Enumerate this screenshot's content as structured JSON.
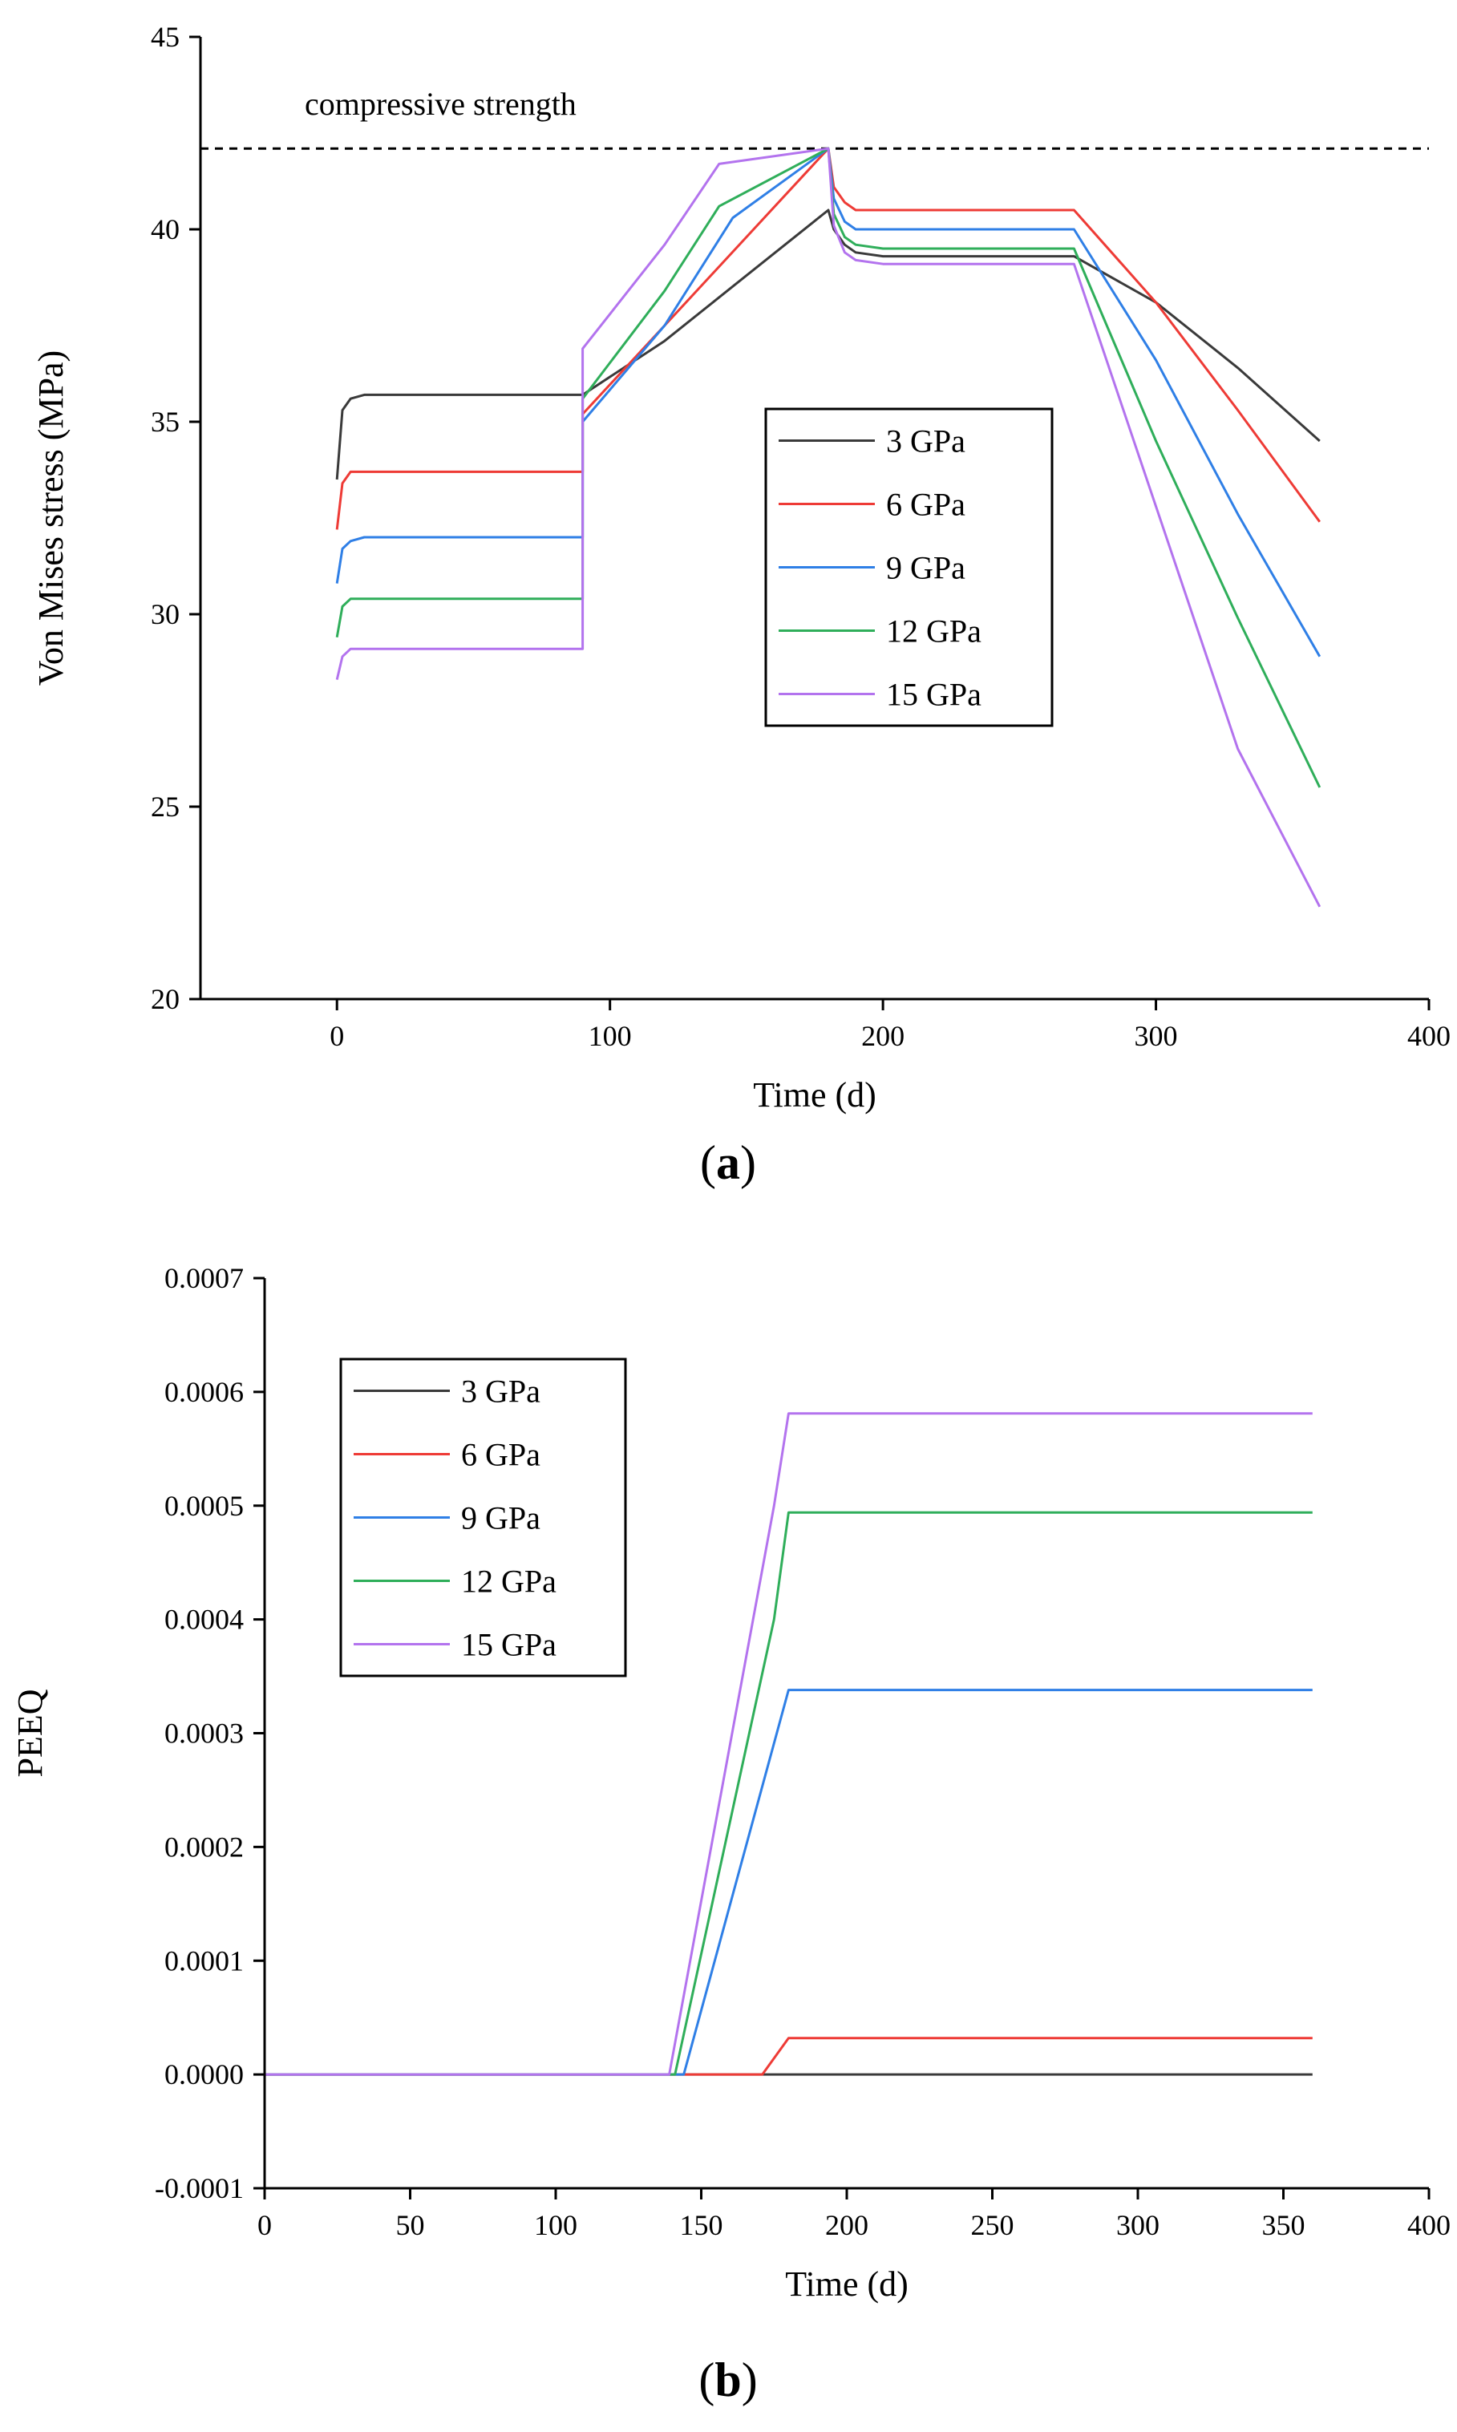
{
  "colors": {
    "3 GPa": "#3a3a3a",
    "6 GPa": "#ee3b36",
    "9 GPa": "#2f7fe6",
    "12 GPa": "#2fae5a",
    "15 GPa": "#b373ee",
    "reference": "#000000"
  },
  "chart_data": [
    {
      "type": "line",
      "panel_label": "a",
      "xlabel": "Time (d)",
      "ylabel": "Von Mises stress (MPa)",
      "xlim": [
        -50,
        400
      ],
      "ylim": [
        20,
        45
      ],
      "xticks": [
        0,
        100,
        200,
        300,
        400
      ],
      "yticks": [
        20,
        25,
        30,
        35,
        40,
        45
      ],
      "xtick_labels": [
        "0",
        "100",
        "200",
        "300",
        "400"
      ],
      "ytick_labels": [
        "20",
        "25",
        "30",
        "35",
        "40",
        "45"
      ],
      "legend_position": "center-right",
      "reference_line": {
        "label": "compressive strength",
        "y": 42.1
      },
      "series": [
        {
          "name": "3 GPa",
          "x": [
            0,
            2,
            5,
            10,
            90,
            90,
            120,
            150,
            180,
            182,
            186,
            190,
            200,
            270,
            300,
            330,
            360
          ],
          "y": [
            33.5,
            35.3,
            35.6,
            35.7,
            35.7,
            35.7,
            37.1,
            38.8,
            40.5,
            40.0,
            39.6,
            39.4,
            39.3,
            39.3,
            38.1,
            36.4,
            34.5
          ]
        },
        {
          "name": "6 GPa",
          "x": [
            0,
            2,
            5,
            10,
            90,
            90,
            120,
            150,
            180,
            182,
            186,
            190,
            200,
            270,
            300,
            330,
            360
          ],
          "y": [
            32.2,
            33.4,
            33.7,
            33.7,
            33.7,
            35.2,
            37.5,
            39.8,
            42.1,
            41.1,
            40.7,
            40.5,
            40.5,
            40.5,
            38.1,
            35.3,
            32.4
          ]
        },
        {
          "name": "9 GPa",
          "x": [
            0,
            2,
            5,
            10,
            90,
            90,
            120,
            145,
            180,
            182,
            186,
            190,
            200,
            270,
            300,
            330,
            360
          ],
          "y": [
            30.8,
            31.7,
            31.9,
            32.0,
            32.0,
            35.0,
            37.5,
            40.3,
            42.1,
            40.8,
            40.2,
            40.0,
            40.0,
            40.0,
            36.6,
            32.6,
            28.9
          ]
        },
        {
          "name": "12 GPa",
          "x": [
            0,
            2,
            5,
            10,
            90,
            90,
            120,
            140,
            180,
            182,
            186,
            190,
            200,
            270,
            300,
            330,
            360
          ],
          "y": [
            29.4,
            30.2,
            30.4,
            30.4,
            30.4,
            35.6,
            38.4,
            40.6,
            42.1,
            40.4,
            39.8,
            39.6,
            39.5,
            39.5,
            34.5,
            29.9,
            25.5
          ]
        },
        {
          "name": "15 GPa",
          "x": [
            0,
            2,
            5,
            10,
            90,
            90,
            120,
            140,
            180,
            182,
            186,
            190,
            200,
            270,
            300,
            330,
            360
          ],
          "y": [
            28.3,
            28.9,
            29.1,
            29.1,
            29.1,
            36.9,
            39.6,
            41.7,
            42.1,
            40.1,
            39.4,
            39.2,
            39.1,
            39.1,
            32.8,
            26.5,
            22.4
          ]
        }
      ]
    },
    {
      "type": "line",
      "panel_label": "b",
      "xlabel": "Time (d)",
      "ylabel": "PEEQ",
      "xlim": [
        0,
        400
      ],
      "ylim": [
        -0.0001,
        0.0007
      ],
      "xticks": [
        0,
        50,
        100,
        150,
        200,
        250,
        300,
        350,
        400
      ],
      "yticks": [
        -0.0001,
        0,
        0.0001,
        0.0002,
        0.0003,
        0.0004,
        0.0005,
        0.0006,
        0.0007
      ],
      "xtick_labels": [
        "0",
        "50",
        "100",
        "150",
        "200",
        "250",
        "300",
        "350",
        "400"
      ],
      "ytick_labels": [
        "-0.0001",
        "0.0000",
        "0.0001",
        "0.0002",
        "0.0003",
        "0.0004",
        "0.0005",
        "0.0006",
        "0.0007"
      ],
      "legend_position": "top-left",
      "series": [
        {
          "name": "3 GPa",
          "x": [
            0,
            360
          ],
          "y": [
            0,
            0
          ]
        },
        {
          "name": "6 GPa",
          "x": [
            0,
            171,
            180,
            360
          ],
          "y": [
            0,
            0,
            3.2e-05,
            3.2e-05
          ]
        },
        {
          "name": "9 GPa",
          "x": [
            0,
            144,
            180,
            360
          ],
          "y": [
            0,
            0,
            0.000338,
            0.000338
          ]
        },
        {
          "name": "12 GPa",
          "x": [
            0,
            141,
            175,
            180,
            360
          ],
          "y": [
            0,
            0,
            0.0004,
            0.000494,
            0.000494
          ]
        },
        {
          "name": "15 GPa",
          "x": [
            0,
            139,
            175,
            180,
            360
          ],
          "y": [
            0,
            0,
            0.0005,
            0.000581,
            0.000581
          ]
        }
      ]
    }
  ]
}
